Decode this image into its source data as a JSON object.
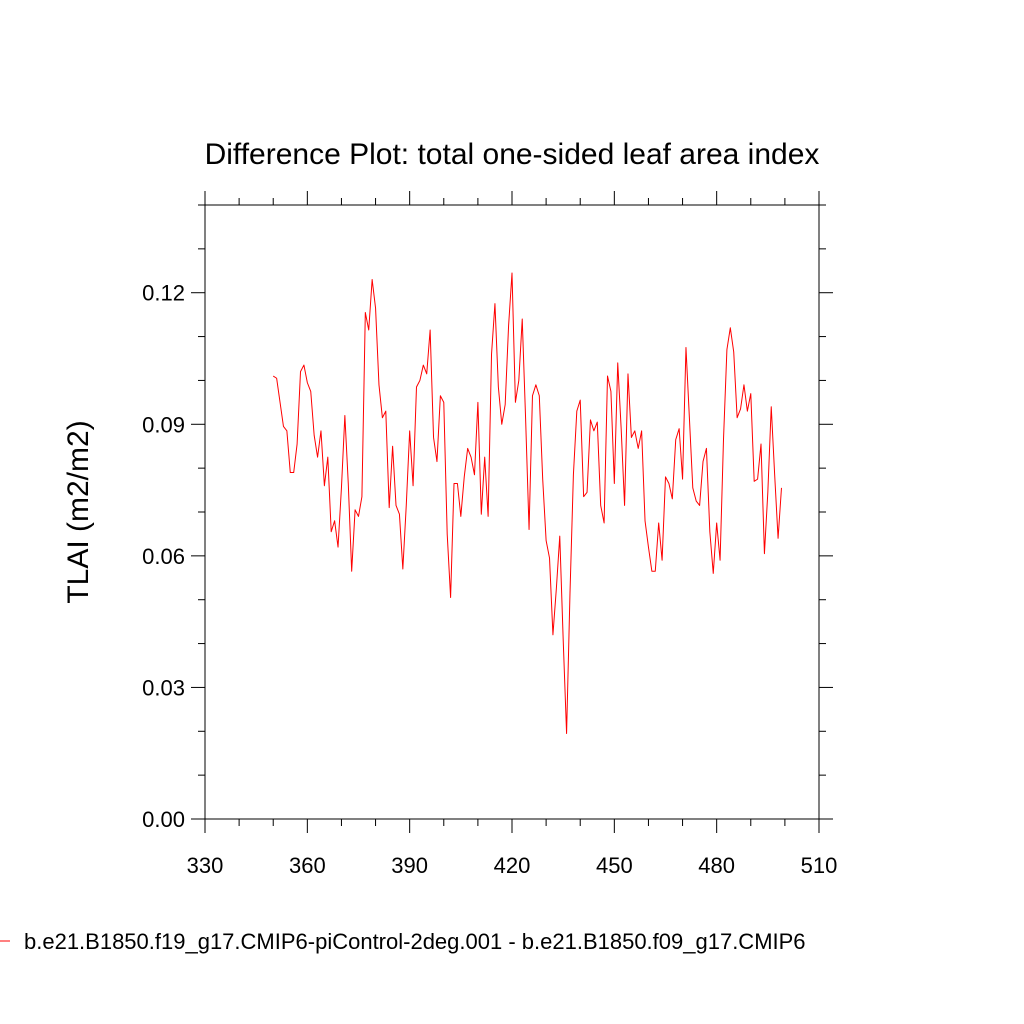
{
  "chart_data": {
    "type": "line",
    "title": "Difference Plot: total one-sided leaf area index",
    "xlabel": "",
    "ylabel": "TLAI  (m2/m2)",
    "xlim": [
      330,
      510
    ],
    "ylim": [
      0.0,
      0.14
    ],
    "xticks": [
      330,
      360,
      390,
      420,
      450,
      480,
      510
    ],
    "xtick_labels": [
      "330",
      "360",
      "390",
      "420",
      "450",
      "480",
      "510"
    ],
    "yticks": [
      0.0,
      0.03,
      0.06,
      0.09,
      0.12
    ],
    "ytick_labels": [
      "0.00",
      "0.03",
      "0.06",
      "0.09",
      "0.12"
    ],
    "grid": false,
    "legend_position": "bottom",
    "series": [
      {
        "name": "b.e21.B1850.f19_g17.CMIP6-piControl-2deg.001 - b.e21.B1850.f09_g17.CMIP6",
        "color": "#ff0000",
        "x": [
          350,
          351,
          352,
          353,
          354,
          355,
          356,
          357,
          358,
          359,
          360,
          361,
          362,
          363,
          364,
          365,
          366,
          367,
          368,
          369,
          370,
          371,
          372,
          373,
          374,
          375,
          376,
          377,
          378,
          379,
          380,
          381,
          382,
          383,
          384,
          385,
          386,
          387,
          388,
          389,
          390,
          391,
          392,
          393,
          394,
          395,
          396,
          397,
          398,
          399,
          400,
          401,
          402,
          403,
          404,
          405,
          406,
          407,
          408,
          409,
          410,
          411,
          412,
          413,
          414,
          415,
          416,
          417,
          418,
          419,
          420,
          421,
          422,
          423,
          424,
          425,
          426,
          427,
          428,
          429,
          430,
          431,
          432,
          433,
          434,
          435,
          436,
          437,
          438,
          439,
          440,
          441,
          442,
          443,
          444,
          445,
          446,
          447,
          448,
          449,
          450,
          451,
          452,
          453,
          454,
          455,
          456,
          457,
          458,
          459,
          460,
          461,
          462,
          463,
          464,
          465,
          466,
          467,
          468,
          469,
          470,
          471,
          472,
          473,
          474,
          475,
          476,
          477,
          478,
          479,
          480,
          481,
          482,
          483,
          484,
          485,
          486,
          487,
          488,
          489,
          490,
          491,
          492,
          493,
          494,
          495,
          496,
          497,
          498,
          499
        ],
        "y": [
          0.101,
          0.1005,
          0.095,
          0.0895,
          0.0885,
          0.079,
          0.079,
          0.0855,
          0.102,
          0.1035,
          0.0995,
          0.0975,
          0.0875,
          0.0825,
          0.0885,
          0.076,
          0.0825,
          0.0655,
          0.068,
          0.062,
          0.0755,
          0.092,
          0.0765,
          0.0565,
          0.0705,
          0.069,
          0.0735,
          0.1155,
          0.1115,
          0.123,
          0.1165,
          0.099,
          0.0915,
          0.093,
          0.071,
          0.085,
          0.0715,
          0.0695,
          0.057,
          0.0715,
          0.0885,
          0.076,
          0.0985,
          0.1,
          0.1035,
          0.1015,
          0.1115,
          0.087,
          0.0815,
          0.0965,
          0.095,
          0.065,
          0.0505,
          0.0765,
          0.0765,
          0.069,
          0.078,
          0.0845,
          0.0825,
          0.0785,
          0.095,
          0.0695,
          0.0825,
          0.069,
          0.106,
          0.1175,
          0.0985,
          0.09,
          0.0945,
          0.1125,
          0.1245,
          0.095,
          0.1,
          0.114,
          0.091,
          0.066,
          0.0965,
          0.099,
          0.0965,
          0.0775,
          0.0635,
          0.0595,
          0.042,
          0.0525,
          0.0645,
          0.041,
          0.0195,
          0.0515,
          0.0785,
          0.093,
          0.0955,
          0.0735,
          0.0745,
          0.091,
          0.0885,
          0.0905,
          0.0715,
          0.0675,
          0.101,
          0.0975,
          0.0765,
          0.104,
          0.089,
          0.0715,
          0.1015,
          0.087,
          0.0885,
          0.0845,
          0.0885,
          0.068,
          0.062,
          0.0565,
          0.0565,
          0.0675,
          0.059,
          0.078,
          0.0765,
          0.073,
          0.0865,
          0.089,
          0.0775,
          0.1075,
          0.0915,
          0.0755,
          0.0725,
          0.0715,
          0.0815,
          0.0845,
          0.0655,
          0.056,
          0.0675,
          0.059,
          0.0865,
          0.107,
          0.112,
          0.1065,
          0.0915,
          0.0935,
          0.099,
          0.093,
          0.097,
          0.077,
          0.0775,
          0.0855,
          0.0605,
          0.0745,
          0.094,
          0.0785,
          0.064,
          0.0755
        ]
      }
    ]
  }
}
